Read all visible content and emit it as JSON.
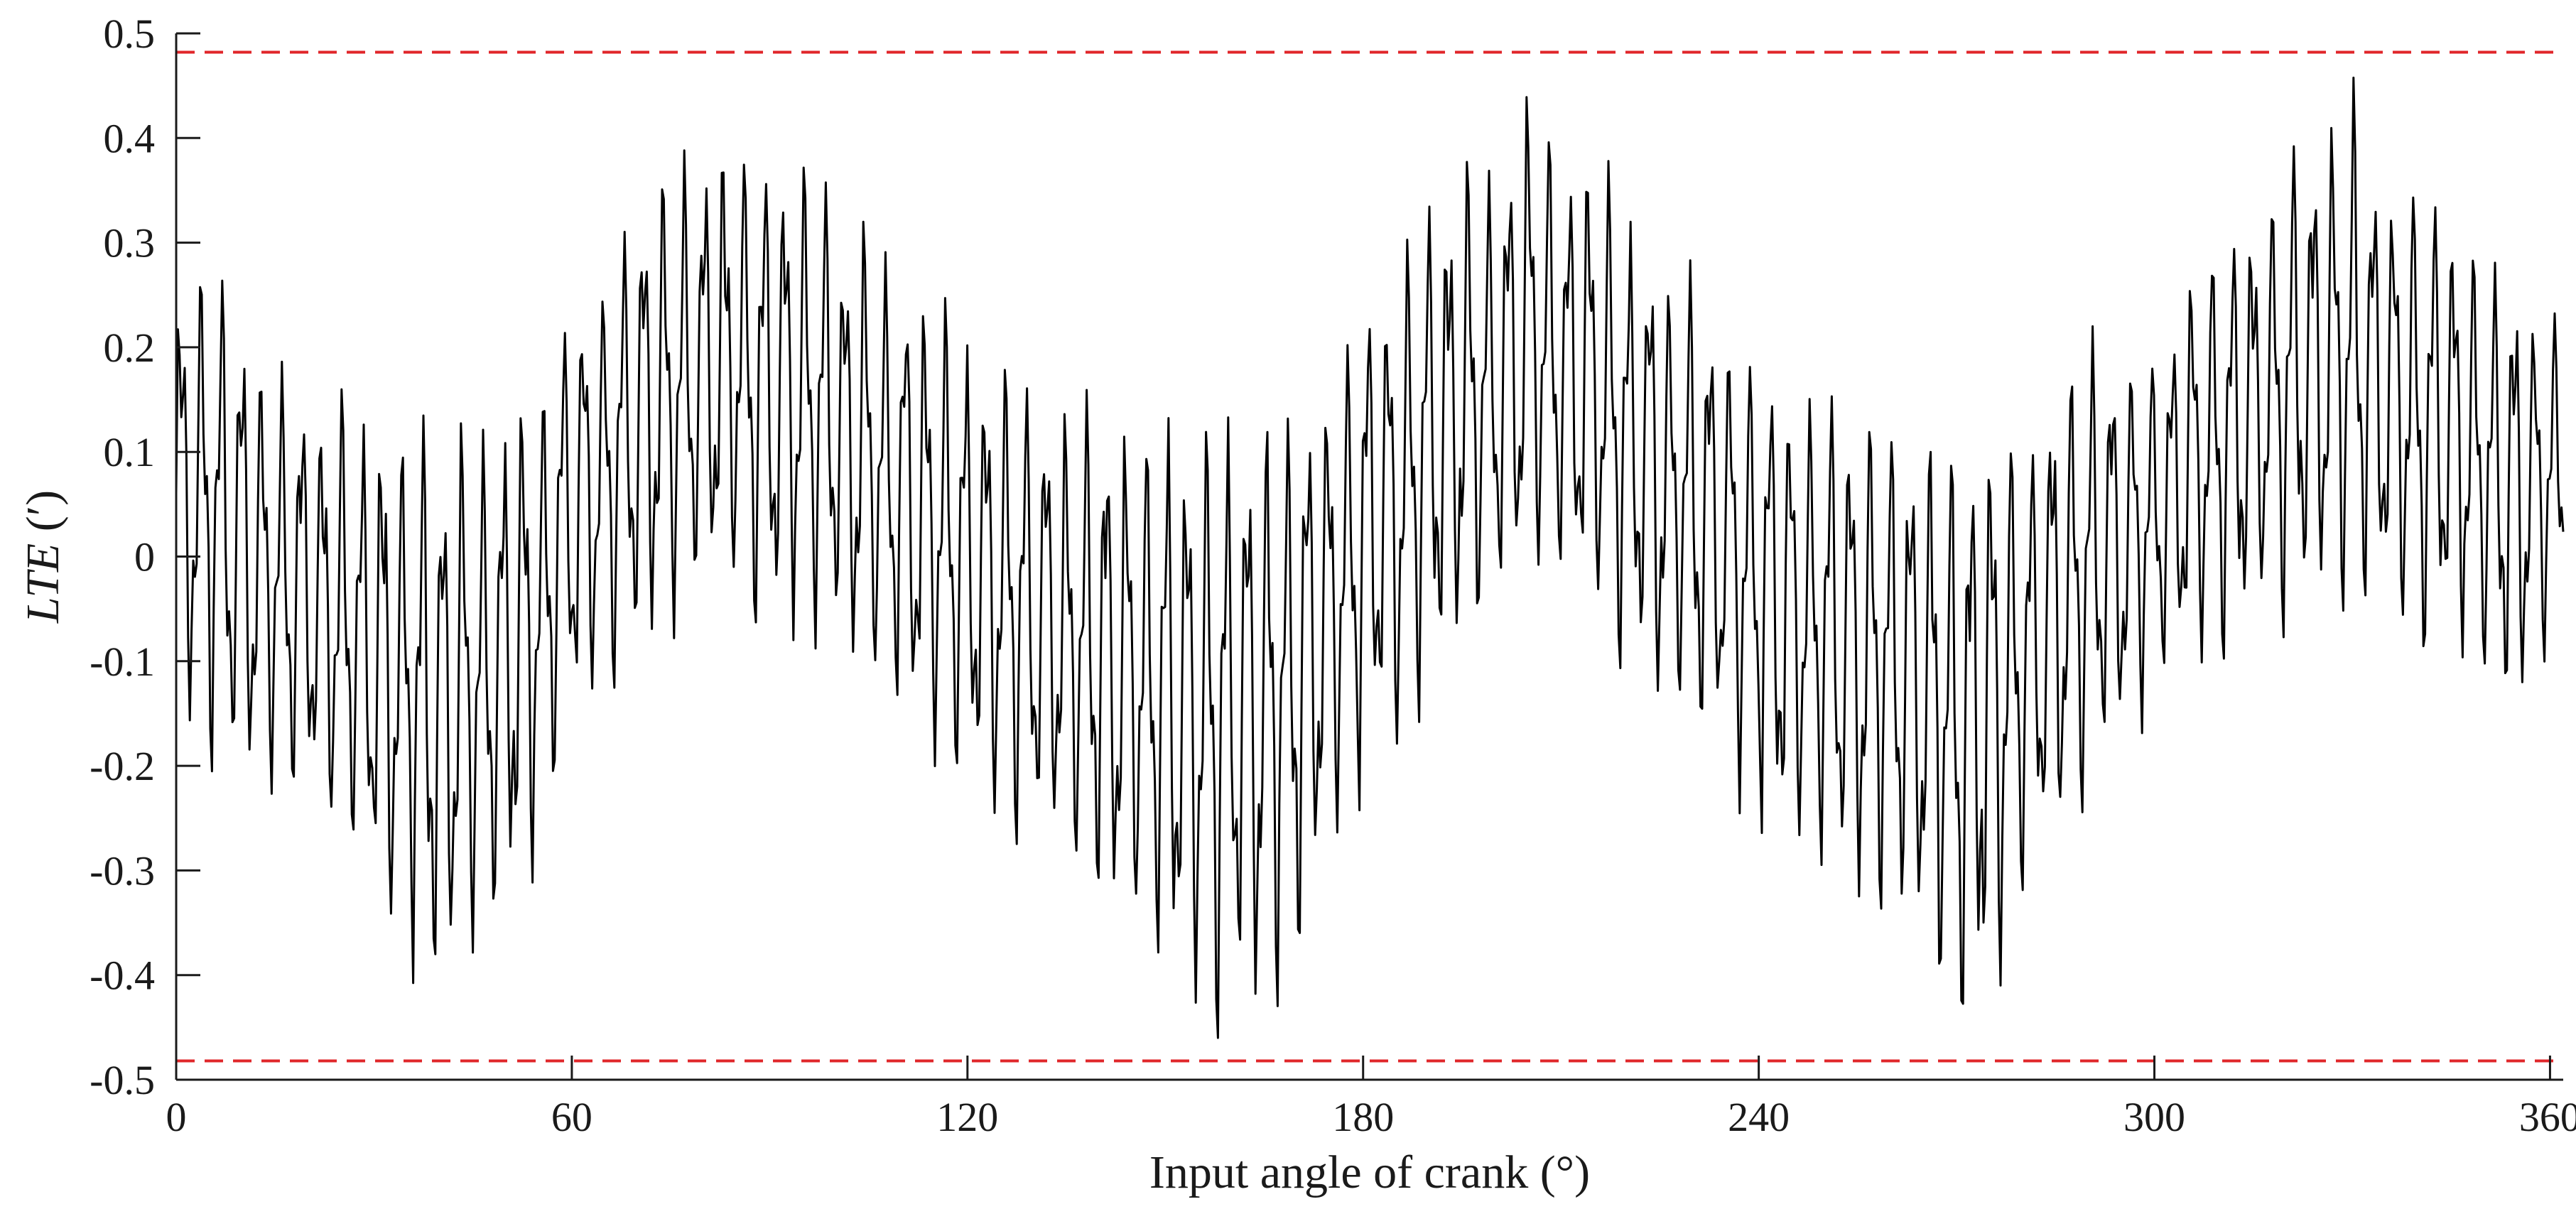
{
  "chart_data": {
    "type": "line",
    "xlabel": "Input angle of crank (°)",
    "ylabel": "LTE (′)",
    "xlim": [
      0,
      362
    ],
    "ylim": [
      -0.5,
      0.5
    ],
    "xticks": [
      0,
      60,
      120,
      180,
      240,
      300,
      360
    ],
    "yticks": [
      0.5,
      0.4,
      0.3,
      0.2,
      0.1,
      0,
      -0.1,
      -0.2,
      -0.3,
      -0.4,
      -0.5
    ],
    "xtick_labels": [
      "0",
      "60",
      "120",
      "180",
      "240",
      "300",
      "360"
    ],
    "ytick_labels": [
      "0.5",
      "0.4",
      "0.3",
      "0.2",
      "0.1",
      "0",
      "-0.1",
      "-0.2",
      "-0.3",
      "-0.4",
      "-0.5"
    ],
    "grid": false,
    "series": [
      {
        "color": "#000000",
        "style": "solid",
        "x": [
          0,
          5,
          10,
          15,
          20,
          25,
          30,
          35,
          40,
          45,
          50,
          55,
          60,
          65,
          70,
          75,
          80,
          85,
          90,
          95,
          100,
          105,
          110,
          115,
          120,
          125,
          130,
          135,
          140,
          145,
          150,
          155,
          160,
          165,
          170,
          175,
          180,
          185,
          190,
          195,
          200,
          205,
          210,
          215,
          220,
          225,
          230,
          235,
          240,
          245,
          250,
          255,
          260,
          265,
          270,
          275,
          280,
          285,
          290,
          295,
          300,
          305,
          310,
          315,
          320,
          325,
          330,
          335,
          340,
          345,
          350,
          355,
          360,
          362
        ],
        "envelope_upper": [
          0.28,
          0.3,
          0.26,
          0.2,
          0.18,
          0.16,
          0.15,
          0.14,
          0.13,
          0.14,
          0.16,
          0.18,
          0.28,
          0.3,
          0.35,
          0.38,
          0.4,
          0.42,
          0.42,
          0.38,
          0.35,
          0.32,
          0.3,
          0.26,
          0.22,
          0.2,
          0.18,
          0.16,
          0.16,
          0.15,
          0.15,
          0.15,
          0.16,
          0.16,
          0.18,
          0.2,
          0.28,
          0.3,
          0.35,
          0.38,
          0.4,
          0.48,
          0.42,
          0.4,
          0.35,
          0.32,
          0.28,
          0.25,
          0.22,
          0.2,
          0.18,
          0.16,
          0.16,
          0.15,
          0.15,
          0.15,
          0.15,
          0.18,
          0.22,
          0.22,
          0.22,
          0.28,
          0.32,
          0.35,
          0.4,
          0.42,
          0.46,
          0.4,
          0.38,
          0.35,
          0.3,
          0.28,
          0.25,
          0.2
        ],
        "envelope_lower": [
          -0.16,
          -0.2,
          -0.26,
          -0.25,
          -0.25,
          -0.3,
          -0.35,
          -0.4,
          -0.44,
          -0.4,
          -0.36,
          -0.3,
          -0.18,
          -0.14,
          -0.1,
          -0.08,
          -0.06,
          -0.06,
          -0.1,
          -0.08,
          -0.1,
          -0.14,
          -0.18,
          -0.2,
          -0.22,
          -0.26,
          -0.3,
          -0.32,
          -0.35,
          -0.38,
          -0.42,
          -0.46,
          -0.46,
          -0.45,
          -0.4,
          -0.3,
          -0.25,
          -0.2,
          -0.14,
          -0.1,
          -0.08,
          -0.05,
          -0.06,
          -0.08,
          -0.12,
          -0.16,
          -0.2,
          -0.22,
          -0.28,
          -0.3,
          -0.32,
          -0.34,
          -0.36,
          -0.4,
          -0.48,
          -0.44,
          -0.35,
          -0.3,
          -0.24,
          -0.2,
          -0.15,
          -0.12,
          -0.1,
          -0.08,
          -0.08,
          -0.06,
          -0.07,
          -0.09,
          -0.12,
          -0.1,
          -0.14,
          -0.16,
          -0.1,
          -0.06
        ]
      },
      {
        "color": "#e0262a",
        "style": "dashed",
        "x": [
          0,
          362
        ],
        "y": [
          0.482,
          0.482
        ]
      },
      {
        "color": "#e0262a",
        "style": "dashed",
        "x": [
          0,
          362
        ],
        "y": [
          -0.482,
          -0.482
        ]
      }
    ]
  }
}
